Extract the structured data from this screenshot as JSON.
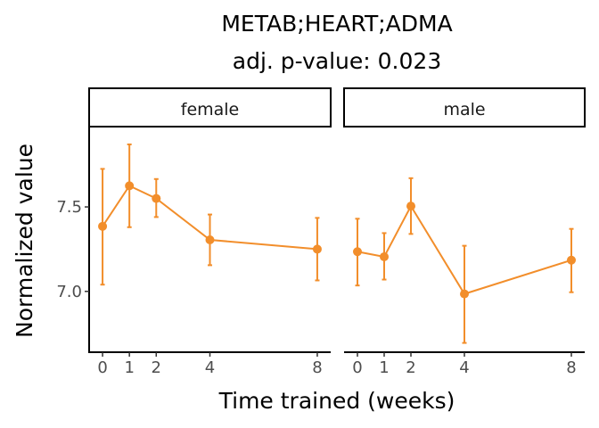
{
  "chart_data": {
    "type": "line",
    "title": "METAB;HEART;ADMA",
    "subtitle": "adj. p-value: 0.023",
    "xlabel": "Time trained (weeks)",
    "ylabel": "Normalized value",
    "x_ticks": [
      0,
      1,
      2,
      4,
      8
    ],
    "y_ticks": [
      7.0,
      7.5
    ],
    "y_tick_labels": [
      "7.0",
      "7.5"
    ],
    "ylim": [
      6.64,
      7.97
    ],
    "xlim": [
      -0.5,
      8.5
    ],
    "line_color": "#f28e2b",
    "grid": false,
    "panels": [
      {
        "name": "female",
        "series": [
          {
            "x": [
              0,
              1,
              2,
              4,
              8
            ],
            "y": [
              7.385,
              7.625,
              7.55,
              7.305,
              7.25
            ],
            "ymin": [
              7.04,
              7.38,
              7.44,
              7.155,
              7.065
            ],
            "ymax": [
              7.725,
              7.87,
              7.665,
              7.455,
              7.435
            ]
          }
        ]
      },
      {
        "name": "male",
        "series": [
          {
            "x": [
              0,
              1,
              2,
              4,
              8
            ],
            "y": [
              7.235,
              7.205,
              7.505,
              6.985,
              7.185
            ],
            "ymin": [
              7.035,
              7.07,
              7.34,
              6.695,
              6.995
            ],
            "ymax": [
              7.43,
              7.345,
              7.67,
              7.27,
              7.37
            ]
          }
        ]
      }
    ]
  }
}
